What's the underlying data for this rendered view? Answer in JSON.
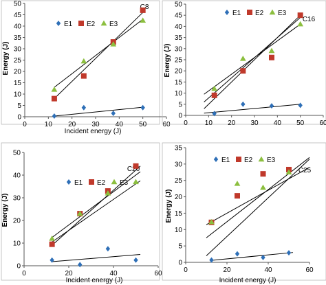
{
  "colors": {
    "E1": "#2e6fb7",
    "E2": "#c0392b",
    "E3": "#8cbf3f",
    "line": "#000000",
    "frame": "#b7b7b7"
  },
  "chart_data": [
    {
      "type": "scatter",
      "title": "C8",
      "xlabel": "Incident energy (J)",
      "ylabel": "Energy (J)",
      "xlim": [
        0,
        60
      ],
      "ylim": [
        0,
        50
      ],
      "xticks": [
        0,
        10,
        20,
        30,
        40,
        50,
        60
      ],
      "yticks": [
        0,
        5,
        10,
        15,
        20,
        25,
        30,
        35,
        40,
        45,
        50
      ],
      "legend": {
        "placement": "top-left",
        "entries": [
          "E1",
          "E2",
          "E3"
        ]
      },
      "series": [
        {
          "name": "E1",
          "marker": "diamond",
          "x": [
            12.5,
            25,
            37.5,
            50
          ],
          "y": [
            0.3,
            4,
            1.5,
            4
          ],
          "trend": [
            0.3,
            4.2
          ]
        },
        {
          "name": "E2",
          "marker": "square",
          "x": [
            12.5,
            25,
            37.5,
            50
          ],
          "y": [
            8,
            18,
            33,
            47
          ],
          "trend": [
            8,
            46
          ]
        },
        {
          "name": "E3",
          "marker": "triangle",
          "x": [
            12.5,
            25,
            37.5,
            50
          ],
          "y": [
            12,
            24.5,
            32,
            42.5
          ],
          "trend": [
            13,
            43
          ]
        }
      ]
    },
    {
      "type": "scatter",
      "title": "C16",
      "xlabel": "",
      "ylabel": "Energy (J)",
      "xlim": [
        0,
        60
      ],
      "ylim": [
        0,
        50
      ],
      "xticks": [
        0,
        10,
        20,
        30,
        40,
        50,
        60
      ],
      "yticks": [
        0,
        5,
        10,
        15,
        20,
        25,
        30,
        35,
        40,
        45,
        50
      ],
      "legend": {
        "placement": "top-left",
        "entries": [
          "E1",
          "E2",
          "E3"
        ]
      },
      "series": [
        {
          "name": "E1",
          "marker": "diamond",
          "x": [
            12.5,
            25,
            37.5,
            50
          ],
          "y": [
            0.8,
            5,
            4.3,
            4.5
          ],
          "trend": [
            [
              8,
              1
            ],
            [
              50,
              5
            ]
          ]
        },
        {
          "name": "E2",
          "marker": "square",
          "x": [
            12.5,
            25,
            37.5,
            50
          ],
          "y": [
            9,
            20,
            26,
            45
          ],
          "trend": [
            [
              8,
              3
            ],
            [
              50,
              45
            ]
          ]
        },
        {
          "name": "E3",
          "marker": "triangle",
          "x": [
            12.5,
            25,
            37.5,
            50
          ],
          "y": [
            12,
            25.5,
            29,
            41
          ],
          "trend": [
            [
              8,
              6
            ],
            [
              50,
              44
            ]
          ]
        },
        {
          "name": "",
          "marker": "none",
          "x": [],
          "y": [],
          "trend": [
            [
              8,
              9.5
            ],
            [
              50,
              41
            ]
          ]
        }
      ]
    },
    {
      "type": "scatter",
      "title": "C20",
      "xlabel": "Incident energy (J)",
      "ylabel": "Energy (J)",
      "xlim": [
        0,
        60
      ],
      "ylim": [
        0,
        50
      ],
      "xticks": [
        0,
        20,
        40,
        60
      ],
      "yticks": [
        0,
        10,
        20,
        30,
        40,
        50
      ],
      "legend": {
        "placement": "top-left",
        "entries": [
          "E1",
          "E2",
          "E3"
        ]
      },
      "series": [
        {
          "name": "E1",
          "marker": "diamond",
          "x": [
            12.5,
            25,
            37.5,
            50
          ],
          "y": [
            2.5,
            0.5,
            7.5,
            2.5
          ],
          "trend": [
            [
              12.5,
              1.8
            ],
            [
              52,
              5
            ]
          ]
        },
        {
          "name": "E2",
          "marker": "square",
          "x": [
            12.5,
            25,
            37.5,
            50
          ],
          "y": [
            9.5,
            23,
            33,
            44
          ],
          "trend": [
            [
              12.5,
              9
            ],
            [
              52,
              44
            ]
          ]
        },
        {
          "name": "E3",
          "marker": "triangle",
          "x": [
            12.5,
            25,
            37.5,
            50
          ],
          "y": [
            12,
            23,
            32,
            37
          ],
          "trend": [
            [
              12.5,
              10.5
            ],
            [
              52,
              37.5
            ]
          ]
        },
        {
          "name": "",
          "marker": "none",
          "x": [],
          "y": [],
          "trend": [
            [
              12.5,
              12.5
            ],
            [
              52,
              41.5
            ]
          ]
        }
      ]
    },
    {
      "type": "scatter",
      "title": "C25",
      "xlabel": "Incident energy (J)",
      "ylabel": "Energy (J)",
      "xlim": [
        0,
        60
      ],
      "ylim": [
        0,
        35
      ],
      "xticks": [
        0,
        20,
        40,
        60
      ],
      "yticks": [
        0,
        5,
        10,
        15,
        20,
        25,
        30,
        35
      ],
      "legend": {
        "placement": "top-left",
        "entries": [
          "E1",
          "E2",
          "E3"
        ]
      },
      "series": [
        {
          "name": "E1",
          "marker": "diamond",
          "x": [
            12.5,
            25,
            37.5,
            50
          ],
          "y": [
            0.7,
            2.6,
            1.5,
            2.9
          ],
          "trend": [
            [
              12.5,
              0.6
            ],
            [
              52,
              3
            ]
          ]
        },
        {
          "name": "E2",
          "marker": "square",
          "x": [
            12.5,
            25,
            37.5,
            50
          ],
          "y": [
            12.2,
            20.3,
            27,
            28.3
          ],
          "trend": [
            [
              10,
              11.5
            ],
            [
              60,
              29
            ]
          ]
        },
        {
          "name": "E3",
          "marker": "triangle",
          "x": [
            12.5,
            25,
            37.5,
            50
          ],
          "y": [
            12.3,
            24,
            22.8,
            27.5
          ],
          "trend": [
            [
              10,
              7.5
            ],
            [
              60,
              32
            ]
          ]
        },
        {
          "name": "",
          "marker": "none",
          "x": [],
          "y": [],
          "trend": [
            [
              10,
              2
            ],
            [
              60,
              31.5
            ]
          ]
        }
      ]
    }
  ]
}
